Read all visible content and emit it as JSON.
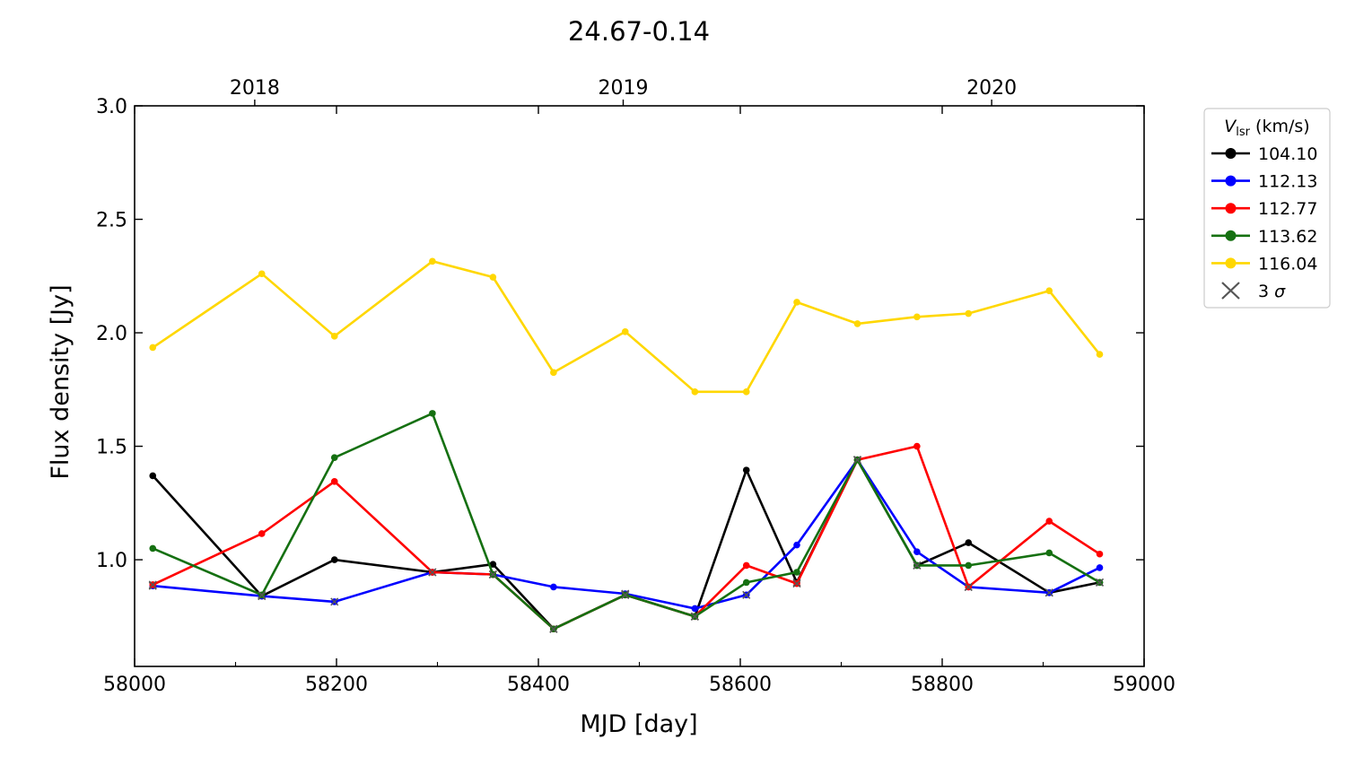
{
  "chart_data": {
    "type": "line",
    "title": "24.67-0.14",
    "xlabel": "MJD [day]",
    "ylabel": "Flux density [Jy]",
    "xlim": [
      58000,
      59000
    ],
    "ylim": [
      0.53,
      3.0
    ],
    "x_ticks": [
      58000,
      58200,
      58400,
      58600,
      58800,
      59000
    ],
    "x_tick_labels": [
      "58000",
      "58200",
      "58400",
      "58600",
      "58800",
      "59000"
    ],
    "y_ticks": [
      1.0,
      1.5,
      2.0,
      2.5,
      3.0
    ],
    "y_tick_labels": [
      "1.0",
      "1.5",
      "2.0",
      "2.5",
      "3.0"
    ],
    "top_axis": {
      "ticks": [
        58119,
        58484,
        58849
      ],
      "labels": [
        "2018",
        "2019",
        "2020"
      ]
    },
    "legend": {
      "title": "V",
      "title_sub": "lsr",
      "title_suffix": " (km/s)",
      "placement": "outside-right",
      "sigma_label": "3 σ"
    },
    "grid": false,
    "x": [
      58018,
      58126,
      58198,
      58295,
      58355,
      58415,
      58486,
      58555,
      58606,
      58656,
      58716,
      58775,
      58826,
      58906,
      58956
    ],
    "series": [
      {
        "name": "104.10",
        "color": "#000000",
        "values": [
          1.37,
          0.84,
          1.0,
          0.945,
          0.98,
          0.695,
          0.845,
          0.75,
          1.395,
          0.9,
          1.44,
          0.975,
          1.075,
          0.855,
          0.9
        ],
        "upper_limit": [
          false,
          true,
          false,
          false,
          false,
          true,
          true,
          true,
          false,
          true,
          true,
          true,
          false,
          true,
          true
        ]
      },
      {
        "name": "112.13",
        "color": "#0000ff",
        "values": [
          0.885,
          0.84,
          0.815,
          0.945,
          0.935,
          0.88,
          0.85,
          0.785,
          0.845,
          1.065,
          1.44,
          1.035,
          0.88,
          0.855,
          0.965
        ],
        "upper_limit": [
          true,
          true,
          true,
          true,
          true,
          false,
          true,
          false,
          true,
          false,
          true,
          false,
          true,
          true,
          false
        ]
      },
      {
        "name": "112.77",
        "color": "#ff0000",
        "values": [
          0.89,
          1.115,
          1.345,
          0.945,
          0.935,
          0.695,
          0.845,
          0.75,
          0.975,
          0.895,
          1.44,
          1.5,
          0.88,
          1.17,
          1.025
        ],
        "upper_limit": [
          true,
          false,
          false,
          true,
          true,
          true,
          true,
          true,
          false,
          true,
          true,
          false,
          true,
          false,
          false
        ]
      },
      {
        "name": "113.62",
        "color": "#157011",
        "values": [
          1.05,
          0.845,
          1.45,
          1.645,
          0.935,
          0.695,
          0.845,
          0.75,
          0.9,
          0.945,
          1.44,
          0.975,
          0.975,
          1.03,
          0.9
        ],
        "upper_limit": [
          false,
          true,
          false,
          false,
          true,
          true,
          true,
          true,
          false,
          false,
          true,
          true,
          false,
          false,
          true
        ]
      },
      {
        "name": "116.04",
        "color": "#ffd700",
        "values": [
          1.935,
          2.26,
          1.985,
          2.315,
          2.245,
          1.825,
          2.005,
          1.74,
          1.74,
          2.135,
          2.04,
          2.07,
          2.085,
          2.185,
          1.905
        ],
        "upper_limit": [
          false,
          false,
          false,
          false,
          false,
          false,
          false,
          false,
          false,
          false,
          false,
          false,
          false,
          false,
          false
        ]
      }
    ]
  }
}
